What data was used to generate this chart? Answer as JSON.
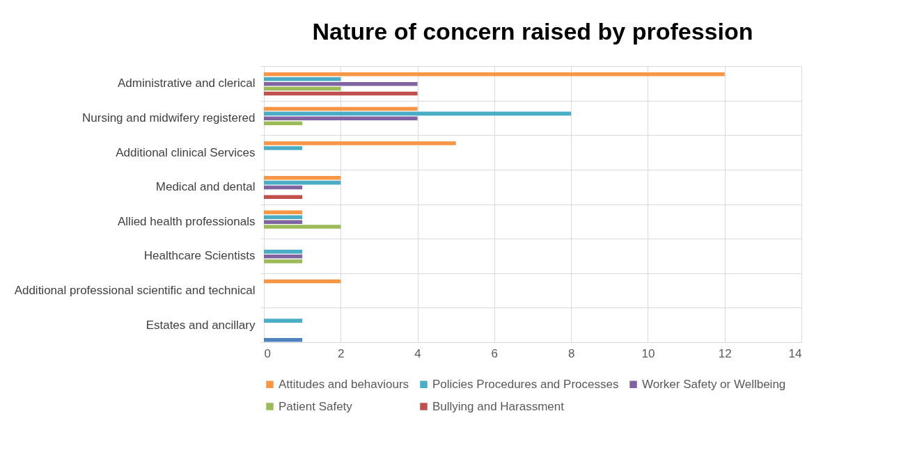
{
  "chart_data": {
    "type": "bar",
    "orientation": "horizontal",
    "title": "Nature of concern raised by profession",
    "categories": [
      "Administrative and clerical",
      "Nursing and midwifery registered",
      "Additional clinical Services",
      "Medical and dental ",
      "Allied health professionals",
      "Healthcare Scientists",
      "Additional professional scientific and technical",
      "Estates and ancillary"
    ],
    "series": [
      {
        "name": "Attitudes and behaviours",
        "color": "#f79646",
        "values": [
          12,
          4,
          5,
          2,
          1,
          null,
          2,
          null
        ]
      },
      {
        "name": "Policies Procedures and Processes",
        "color": "#4bacc6",
        "values": [
          2,
          8,
          1,
          2,
          1,
          1,
          null,
          1
        ]
      },
      {
        "name": "Worker Safety or Wellbeing",
        "color": "#8064a2",
        "values": [
          4,
          4,
          null,
          1,
          1,
          1,
          null,
          null
        ]
      },
      {
        "name": "Patient Safety",
        "color": "#9bbb59",
        "values": [
          2,
          1,
          null,
          null,
          2,
          1,
          null,
          null
        ]
      },
      {
        "name": "Bullying and Harassment",
        "color": "#c0504d",
        "values": [
          4,
          null,
          null,
          1,
          null,
          null,
          null,
          null
        ]
      },
      {
        "color": "#4f81bd",
        "values": [
          null,
          null,
          null,
          null,
          null,
          null,
          null,
          1
        ]
      }
    ],
    "xlim": [
      0,
      14
    ],
    "xticks": [
      0,
      2,
      4,
      6,
      8,
      10,
      12,
      14
    ],
    "grid": true,
    "legend": "bottom"
  }
}
